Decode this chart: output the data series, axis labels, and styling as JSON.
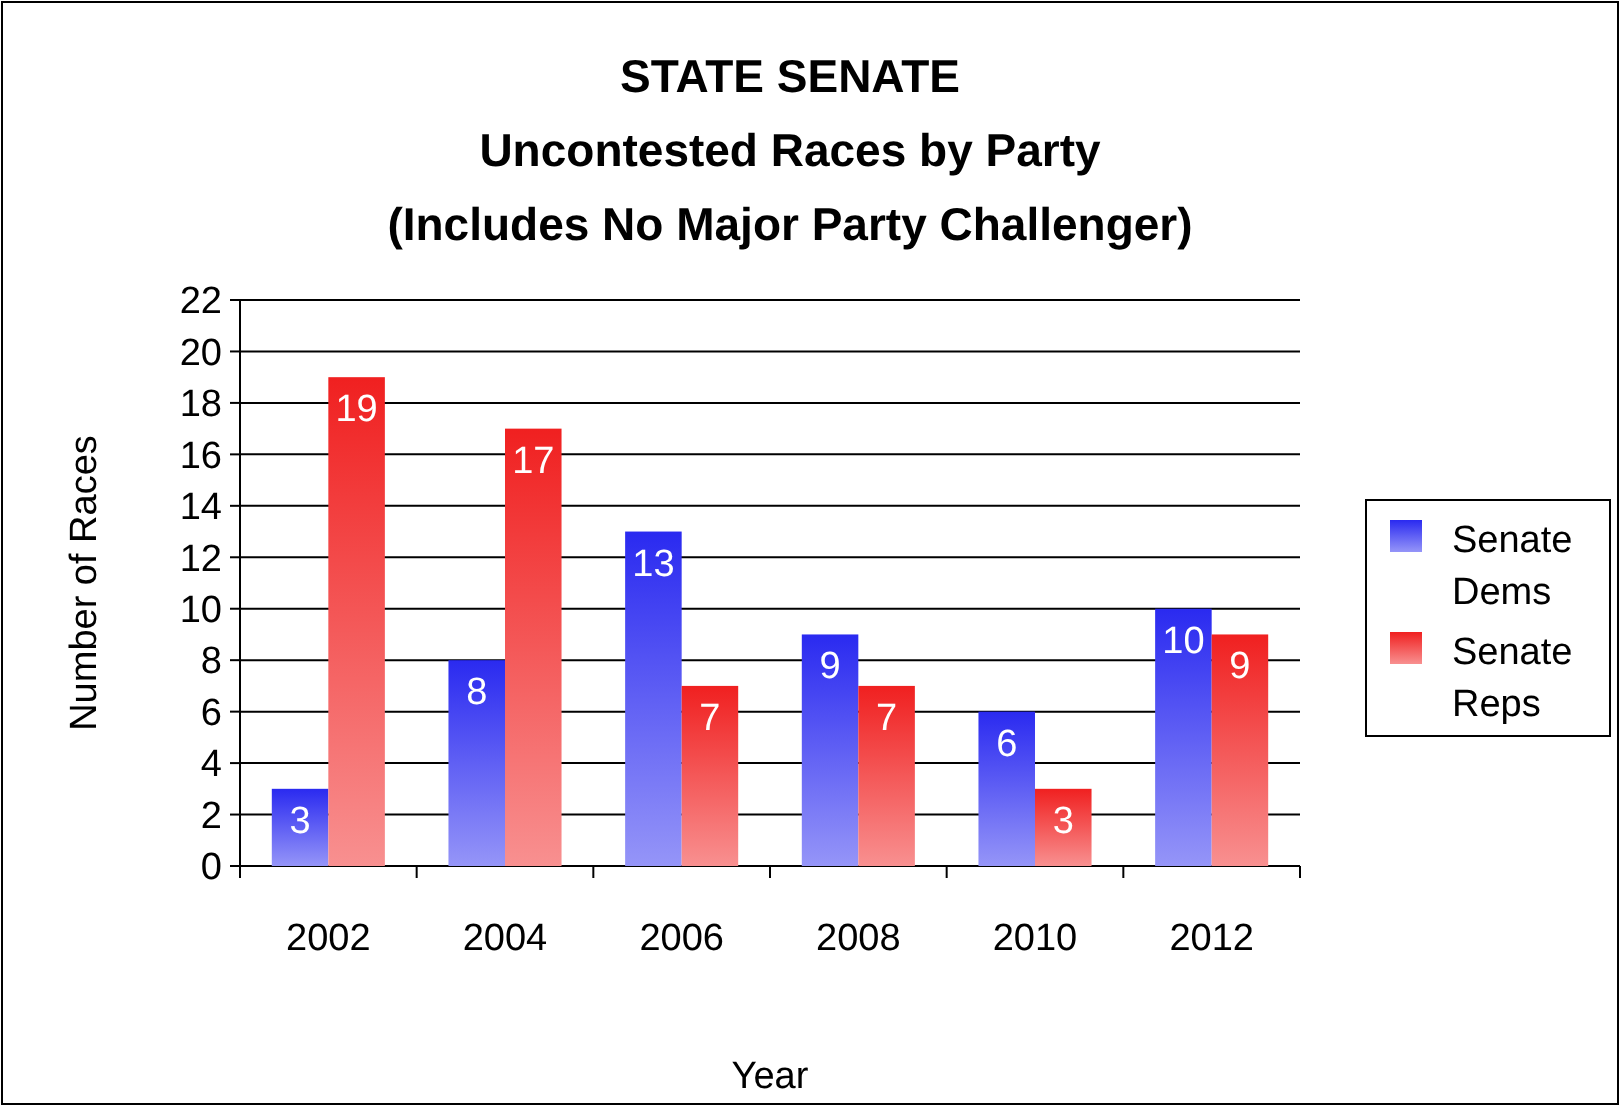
{
  "chart_data": {
    "type": "bar",
    "title": "STATE SENATE\nUncontested Races by Party\n(Includes No Major Party Challenger)",
    "xlabel": "Year",
    "ylabel": "Number of Races",
    "categories": [
      "2002",
      "2004",
      "2006",
      "2008",
      "2010",
      "2012"
    ],
    "series": [
      {
        "name": "Senate Dems",
        "color": "#2a2af0",
        "values": [
          3,
          8,
          13,
          9,
          6,
          10
        ]
      },
      {
        "name": "Senate Reps",
        "color": "#f02020",
        "values": [
          19,
          17,
          7,
          7,
          3,
          9
        ]
      }
    ],
    "ylim": [
      0,
      22
    ],
    "yticks": [
      0,
      2,
      4,
      6,
      8,
      10,
      12,
      14,
      16,
      18,
      20,
      22
    ],
    "grid": "y",
    "legend": "right",
    "data_labels": true
  }
}
